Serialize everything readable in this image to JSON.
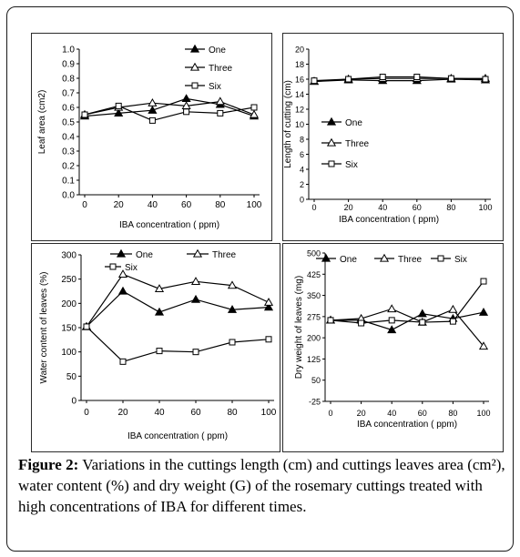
{
  "figure": {
    "caption_label": "Figure 2:",
    "caption_text": "Variations in the cuttings length (cm) and cuttings leaves area (cm²), water content (%) and dry weight (G) of the rosemary cuttings treated with high concentrations of IBA for different times."
  },
  "chart_data": [
    {
      "type": "line",
      "title": "",
      "xlabel": "IBA concentration ( ppm)",
      "ylabel": "Leaf area (cm2)",
      "x": [
        0,
        20,
        40,
        60,
        80,
        100
      ],
      "x_tick_labels": [
        "0",
        "20",
        "40",
        "60",
        "80",
        "100"
      ],
      "ylim": [
        0.0,
        1.0
      ],
      "y_tick_labels": [
        "0.0",
        "0.1",
        "0.2",
        "0.3",
        "0.4",
        "0.5",
        "0.6",
        "0.7",
        "0.8",
        "0.9",
        "1.0"
      ],
      "grid": false,
      "legend_position": "top-right, stacked",
      "series": [
        {
          "name": "One",
          "marker": "filled-triangle",
          "values": [
            0.54,
            0.56,
            0.58,
            0.66,
            0.62,
            0.54
          ]
        },
        {
          "name": "Three",
          "marker": "open-triangle",
          "values": [
            0.55,
            0.6,
            0.63,
            0.61,
            0.64,
            0.55
          ]
        },
        {
          "name": "Six",
          "marker": "open-square",
          "values": [
            0.55,
            0.61,
            0.51,
            0.57,
            0.56,
            0.6
          ]
        }
      ]
    },
    {
      "type": "line",
      "title": "",
      "xlabel": "IBA concentration ( ppm)",
      "ylabel": "Length of cutting (cm)",
      "x": [
        0,
        20,
        40,
        60,
        80,
        100
      ],
      "x_tick_labels": [
        "0",
        "20",
        "40",
        "60",
        "80",
        "100"
      ],
      "ylim": [
        0,
        20
      ],
      "y_tick_labels": [
        "0",
        "2",
        "4",
        "6",
        "8",
        "10",
        "12",
        "14",
        "16",
        "18",
        "20"
      ],
      "grid": false,
      "legend_position": "middle-left, stacked",
      "series": [
        {
          "name": "One",
          "marker": "filled-triangle",
          "values": [
            15.7,
            15.9,
            15.8,
            15.8,
            16.0,
            15.9
          ]
        },
        {
          "name": "Three",
          "marker": "open-triangle",
          "values": [
            15.7,
            16.0,
            16.1,
            16.1,
            16.1,
            16.1
          ]
        },
        {
          "name": "Six",
          "marker": "open-square",
          "values": [
            15.8,
            16.0,
            16.3,
            16.3,
            16.1,
            16.0
          ]
        }
      ]
    },
    {
      "type": "line",
      "title": "",
      "xlabel": "IBA concentration ( ppm)",
      "ylabel": "Water content of leaves (%)",
      "x": [
        0,
        20,
        40,
        60,
        80,
        100
      ],
      "x_tick_labels": [
        "0",
        "20",
        "40",
        "60",
        "80",
        "100"
      ],
      "ylim": [
        0,
        300
      ],
      "y_tick_labels": [
        "0",
        "50",
        "100",
        "150",
        "200",
        "250",
        "300"
      ],
      "grid": false,
      "legend_position": "top, horizontal",
      "series": [
        {
          "name": "One",
          "marker": "filled-triangle",
          "values": [
            152,
            225,
            182,
            208,
            187,
            192
          ]
        },
        {
          "name": "Three",
          "marker": "open-triangle",
          "values": [
            152,
            260,
            230,
            245,
            237,
            202
          ]
        },
        {
          "name": "Six",
          "marker": "open-square",
          "values": [
            152,
            80,
            102,
            100,
            120,
            126
          ]
        }
      ]
    },
    {
      "type": "line",
      "title": "",
      "xlabel": "IBA concentration ( ppm)",
      "ylabel": "Dry weight of leaves (mg)",
      "x": [
        0,
        20,
        40,
        60,
        80,
        100
      ],
      "x_tick_labels": [
        "0",
        "20",
        "40",
        "60",
        "80",
        "100"
      ],
      "ylim": [
        -25,
        500
      ],
      "y_tick_labels": [
        "500",
        "425",
        "350",
        "275",
        "200",
        "125",
        "50",
        "-25"
      ],
      "grid": false,
      "legend_position": "top, horizontal",
      "series": [
        {
          "name": "One",
          "marker": "filled-triangle",
          "values": [
            262,
            262,
            228,
            285,
            268,
            290
          ]
        },
        {
          "name": "Three",
          "marker": "open-triangle",
          "values": [
            262,
            268,
            302,
            255,
            300,
            170
          ]
        },
        {
          "name": "Six",
          "marker": "open-square",
          "values": [
            262,
            252,
            262,
            255,
            258,
            400
          ]
        }
      ]
    }
  ]
}
